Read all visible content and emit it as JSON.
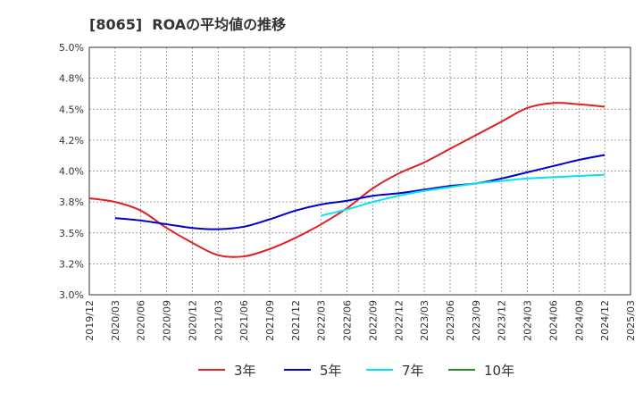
{
  "chart_data": {
    "type": "line",
    "title": "[8065]  ROAの平均値の推移",
    "xlabel": "",
    "ylabel": "",
    "ylim": [
      3.0,
      5.0
    ],
    "y_ticks": [
      "5.0%",
      "4.8%",
      "4.5%",
      "4.2%",
      "4.0%",
      "3.8%",
      "3.5%",
      "3.2%",
      "3.0%"
    ],
    "x_ticks": [
      "2019/12",
      "2020/03",
      "2020/06",
      "2020/09",
      "2020/12",
      "2021/03",
      "2021/06",
      "2021/09",
      "2021/12",
      "2022/03",
      "2022/06",
      "2022/09",
      "2022/12",
      "2023/03",
      "2023/06",
      "2023/09",
      "2023/12",
      "2024/03",
      "2024/06",
      "2024/09",
      "2024/12",
      "2025/03"
    ],
    "grid": true,
    "legend_position": "bottom",
    "series": [
      {
        "name": "3年",
        "color": "#dd2222",
        "x": [
          "2019/12",
          "2020/03",
          "2020/06",
          "2020/09",
          "2020/12",
          "2021/03",
          "2021/06",
          "2021/09",
          "2021/12",
          "2022/03",
          "2022/06",
          "2022/09",
          "2022/12",
          "2023/03",
          "2023/06",
          "2023/09",
          "2023/12",
          "2024/03",
          "2024/06",
          "2024/09",
          "2024/12"
        ],
        "values": [
          3.78,
          3.75,
          3.68,
          3.54,
          3.42,
          3.32,
          3.31,
          3.37,
          3.46,
          3.57,
          3.7,
          3.86,
          3.98,
          4.07,
          4.18,
          4.29,
          4.4,
          4.51,
          4.55,
          4.54,
          4.52
        ]
      },
      {
        "name": "5年",
        "color": "#0000cc",
        "x": [
          "2020/03",
          "2020/06",
          "2020/09",
          "2020/12",
          "2021/03",
          "2021/06",
          "2021/09",
          "2021/12",
          "2022/03",
          "2022/06",
          "2022/09",
          "2022/12",
          "2023/03",
          "2023/06",
          "2023/09",
          "2023/12",
          "2024/03",
          "2024/06",
          "2024/09",
          "2024/12"
        ],
        "values": [
          3.62,
          3.6,
          3.57,
          3.54,
          3.53,
          3.55,
          3.61,
          3.68,
          3.73,
          3.76,
          3.8,
          3.82,
          3.85,
          3.88,
          3.9,
          3.94,
          3.99,
          4.04,
          4.09,
          4.13
        ]
      },
      {
        "name": "7年",
        "color": "#00e5ee",
        "x": [
          "2022/03",
          "2022/06",
          "2022/09",
          "2022/12",
          "2023/03",
          "2023/06",
          "2023/09",
          "2023/12",
          "2024/03",
          "2024/06",
          "2024/09",
          "2024/12"
        ],
        "values": [
          3.64,
          3.69,
          3.75,
          3.8,
          3.84,
          3.87,
          3.9,
          3.92,
          3.94,
          3.95,
          3.96,
          3.97
        ]
      },
      {
        "name": "10年",
        "color": "#228b22",
        "x": [],
        "values": []
      }
    ]
  }
}
